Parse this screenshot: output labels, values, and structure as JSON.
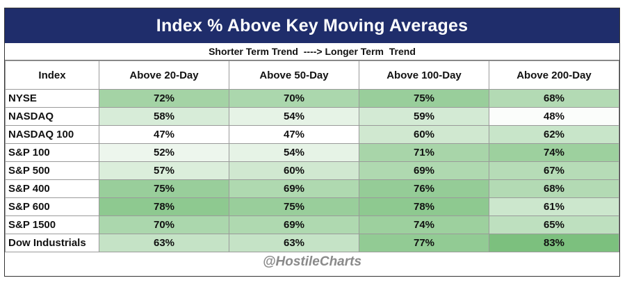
{
  "title": "Index % Above Key Moving Averages",
  "subtitle": "Shorter Term Trend  ----> Longer Term  Trend",
  "footer": "@HostileCharts",
  "colors": {
    "header_bg": "#1f2d6b",
    "heat_low": "#ffffff",
    "heat_high": "#7cc07e"
  },
  "chart_data": {
    "type": "table",
    "columns": [
      "Index",
      "Above 20-Day",
      "Above 50-Day",
      "Above 100-Day",
      "Above 200-Day"
    ],
    "rows": [
      {
        "label": "NYSE",
        "values": [
          72,
          70,
          75,
          68
        ]
      },
      {
        "label": "NASDAQ",
        "values": [
          58,
          54,
          59,
          48
        ]
      },
      {
        "label": "NASDAQ 100",
        "values": [
          47,
          47,
          60,
          62
        ]
      },
      {
        "label": "S&P 100",
        "values": [
          52,
          54,
          71,
          74
        ]
      },
      {
        "label": "S&P 500",
        "values": [
          57,
          60,
          69,
          67
        ]
      },
      {
        "label": "S&P 400",
        "values": [
          75,
          69,
          76,
          68
        ]
      },
      {
        "label": "S&P 600",
        "values": [
          78,
          75,
          78,
          61
        ]
      },
      {
        "label": "S&P 1500",
        "values": [
          70,
          69,
          74,
          65
        ]
      },
      {
        "label": "Dow Industrials",
        "values": [
          63,
          63,
          77,
          83
        ]
      }
    ]
  }
}
